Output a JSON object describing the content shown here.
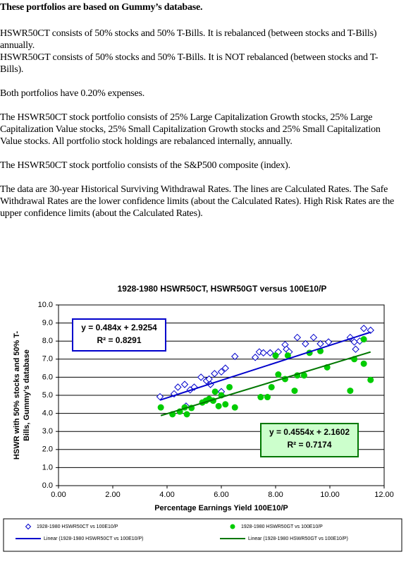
{
  "heading": "These portfolios are based on Gummy’s database.",
  "paragraphs": [
    [
      "HSWR50CT consists of 50% stocks and 50% T-Bills. It is rebalanced (between stocks and T-Bills) annually.",
      "HSWR50GT consists of 50% stocks and 50% T-Bills. It is NOT rebalanced (between stocks and T-Bills)."
    ],
    [
      "Both portfolios have 0.20% expenses."
    ],
    [
      "The HSWR50CT stock portfolio consists of 25% Large Capitalization Growth stocks, 25% Large Capitalization Value stocks, 25% Small Capitalization Growth stocks and 25% Small Capitalization Value stocks. All portfolio stock holdings are rebalanced internally, annually."
    ],
    [
      "The HSWR50CT stock portfolio consists of the S&P500 composite (index)."
    ],
    [
      "The data are 30-year Historical Surviving Withdrawal Rates. The lines are Calculated Rates. The Safe Withdrawal Rates are the lower confidence limits (about the Calculated Rates). High Risk Rates are the upper confidence limits (about the Calculated Rates)."
    ]
  ],
  "chart_data": {
    "type": "scatter",
    "title": "1928-1980 HSWR50CT, HSWR50GT versus 100E10/P",
    "xlabel": "Percentage Earnings Yield 100E10/P",
    "ylabel_lines": [
      "HSWR with 50% stocks and 50% T-",
      "Bills, Gummy's database"
    ],
    "xlim": [
      0,
      12
    ],
    "ylim": [
      0,
      10
    ],
    "xticks": [
      {
        "value": 0,
        "label": "0.00"
      },
      {
        "value": 2,
        "label": "2.00"
      },
      {
        "value": 4,
        "label": "4.00"
      },
      {
        "value": 6,
        "label": "6.00"
      },
      {
        "value": 8,
        "label": "8.00"
      },
      {
        "value": 10,
        "label": "10.00"
      },
      {
        "value": 12,
        "label": "12.00"
      }
    ],
    "yticks": [
      {
        "value": 0,
        "label": "0.0"
      },
      {
        "value": 1,
        "label": "1.0"
      },
      {
        "value": 2,
        "label": "2.0"
      },
      {
        "value": 3,
        "label": "3.0"
      },
      {
        "value": 4,
        "label": "4.0"
      },
      {
        "value": 5,
        "label": "5.0"
      },
      {
        "value": 6,
        "label": "6.0"
      },
      {
        "value": 7,
        "label": "7.0"
      },
      {
        "value": 8,
        "label": "8.0"
      },
      {
        "value": 9,
        "label": "9.0"
      },
      {
        "value": 10,
        "label": "10.0"
      }
    ],
    "grid": true,
    "series": [
      {
        "name": "1928-1980 HSWR50CT vs 100E10/P",
        "color": "#0000cc",
        "marker": "diamond",
        "x": [
          3.74,
          4.26,
          4.4,
          4.65,
          4.85,
          5.0,
          4.7,
          5.25,
          5.45,
          5.55,
          5.6,
          5.75,
          6.0,
          6.15,
          6.5,
          7.25,
          7.4,
          7.55,
          7.8,
          8.1,
          8.35,
          8.4,
          8.5,
          8.8,
          9.1,
          9.4,
          9.65,
          9.95,
          10.75,
          10.9,
          10.95,
          11.25,
          11.5,
          11.1,
          6.0
        ],
        "values": [
          4.92,
          5.08,
          5.45,
          5.6,
          5.3,
          5.45,
          4.4,
          6.0,
          5.8,
          5.9,
          5.6,
          6.2,
          6.3,
          6.5,
          7.15,
          7.1,
          7.4,
          7.35,
          7.35,
          7.4,
          7.8,
          7.55,
          7.4,
          8.2,
          7.85,
          8.2,
          7.85,
          7.95,
          8.2,
          7.95,
          7.55,
          8.7,
          8.6,
          8.0,
          5.2
        ]
      },
      {
        "name": "1928-1980 HSWR50GT vs 100E10/P",
        "color": "#00cc00",
        "marker": "circle",
        "x": [
          3.77,
          4.2,
          4.47,
          4.65,
          4.73,
          4.9,
          5.3,
          5.43,
          5.55,
          5.7,
          5.9,
          6.0,
          6.15,
          6.3,
          6.5,
          5.77,
          7.45,
          7.7,
          7.85,
          8.1,
          8.35,
          8.45,
          8.7,
          8.8,
          9.05,
          9.25,
          9.65,
          9.9,
          10.75,
          10.9,
          11.25,
          11.25,
          11.5,
          8.0
        ],
        "values": [
          4.33,
          3.95,
          4.1,
          4.33,
          3.95,
          4.3,
          4.6,
          4.7,
          4.8,
          4.7,
          4.4,
          5.0,
          4.5,
          5.45,
          4.33,
          5.2,
          4.9,
          4.9,
          5.45,
          6.15,
          5.9,
          7.2,
          5.25,
          6.1,
          6.1,
          7.35,
          7.45,
          6.55,
          5.25,
          7.0,
          6.75,
          8.1,
          5.85,
          7.2
        ]
      }
    ],
    "trendlines": [
      {
        "name": "Linear (1928-1980 HSWR50CT vs 100E10/P)",
        "color": "#0000cc",
        "slope": 0.484,
        "intercept": 2.9254,
        "equation": "y = 0.484x + 2.9254",
        "r2": "R² = 0.8291"
      },
      {
        "name": "Linear (1928-1980 HSWR50GT vs 100E10/P)",
        "color": "#007700",
        "slope": 0.4554,
        "intercept": 2.1602,
        "equation": "y = 0.4554x + 2.1602",
        "r2": "R² = 0.7174"
      }
    ]
  }
}
